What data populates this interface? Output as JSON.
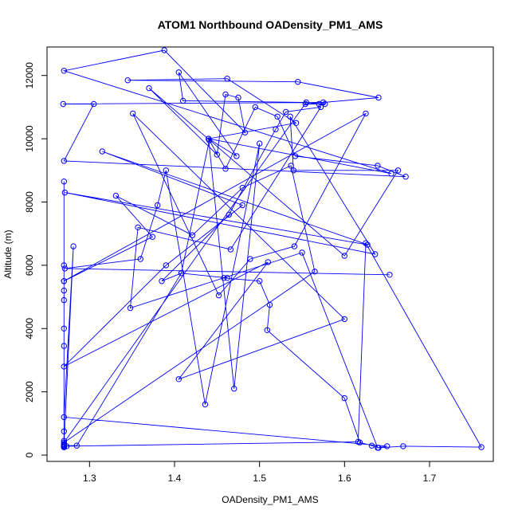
{
  "chart_data": {
    "type": "line",
    "title": "ATOM1 Northbound OADensity_PM1_AMS",
    "xlabel": "OADensity_PM1_AMS",
    "ylabel": "Altitude (m)",
    "xlim": [
      1.25,
      1.775
    ],
    "ylim": [
      -200,
      12900
    ],
    "xticks": [
      1.3,
      1.4,
      1.5,
      1.6,
      1.7
    ],
    "yticks": [
      0,
      2000,
      4000,
      6000,
      8000,
      10000,
      12000
    ],
    "xtick_labels": [
      "1.3",
      "1.4",
      "1.5",
      "1.6",
      "1.7"
    ],
    "ytick_labels": [
      "0",
      "2000",
      "4000",
      "6000",
      "8000",
      "10000",
      "12000"
    ],
    "grid": false,
    "legend": "none",
    "series_color": "#0000ff",
    "series": [
      {
        "x": [
          1.27,
          1.27,
          1.27,
          1.27,
          1.27,
          1.27,
          1.27,
          1.27,
          1.27,
          1.27,
          1.27,
          1.27,
          1.27,
          1.27,
          1.27,
          1.285,
          1.408,
          1.462,
          1.458,
          1.5,
          1.512,
          1.509,
          1.6,
          1.618,
          1.632,
          1.64,
          1.669,
          1.761,
          1.625,
          1.616,
          1.273,
          1.27,
          1.281,
          1.27,
          1.65,
          1.639,
          1.55,
          1.348,
          1.357,
          1.466,
          1.572,
          1.531,
          1.519,
          1.464,
          1.385,
          1.408,
          1.441,
          1.46,
          1.495,
          1.521,
          1.542,
          1.639,
          1.672,
          1.27,
          1.305,
          1.269,
          1.575,
          1.577,
          1.57,
          1.554,
          1.64,
          1.545,
          1.345,
          1.462,
          1.543,
          1.44,
          1.473,
          1.405,
          1.41,
          1.555,
          1.27,
          1.565,
          1.537,
          1.48,
          1.421,
          1.331,
          1.374,
          1.27,
          1.625,
          1.541,
          1.489,
          1.452,
          1.351,
          1.6,
          1.405,
          1.51,
          1.27,
          1.39,
          1.48,
          1.315,
          1.627,
          1.271,
          1.636,
          1.536,
          1.54,
          1.663,
          1.6,
          1.37,
          1.45,
          1.46,
          1.475,
          1.483,
          1.388,
          1.27,
          1.655,
          1.44,
          1.47,
          1.5,
          1.436,
          1.39,
          1.38,
          1.36,
          1.271,
          1.653
        ],
        "y": [
          8650,
          6000,
          5500,
          5200,
          4900,
          4000,
          3450,
          750,
          450,
          350,
          300,
          250,
          250,
          270,
          300,
          300,
          5750,
          5600,
          5600,
          5500,
          4750,
          3950,
          1800,
          400,
          300,
          230,
          280,
          250,
          6700,
          420,
          280,
          330,
          6600,
          1200,
          280,
          230,
          6400,
          4650,
          7200,
          6500,
          11000,
          10850,
          10300,
          7600,
          5500,
          5750,
          9950,
          9050,
          11000,
          10700,
          9450,
          9150,
          8800,
          9300,
          11100,
          11100,
          11150,
          11100,
          11100,
          11100,
          11300,
          11800,
          11850,
          11900,
          10500,
          10000,
          9450,
          12100,
          11200,
          11150,
          400,
          5800,
          9150,
          8450,
          6950,
          8200,
          6900,
          5500,
          10800,
          6600,
          6200,
          5050,
          10800,
          4300,
          2400,
          6100,
          2800,
          6000,
          7900,
          9600,
          6650,
          8300,
          6350,
          10700,
          9000,
          9000,
          6300,
          11600,
          9500,
          11400,
          11300,
          10200,
          12800,
          12150,
          8900,
          10000,
          2100,
          9850,
          1600,
          9000,
          7900,
          6200,
          5900,
          5700
        ]
      }
    ]
  }
}
